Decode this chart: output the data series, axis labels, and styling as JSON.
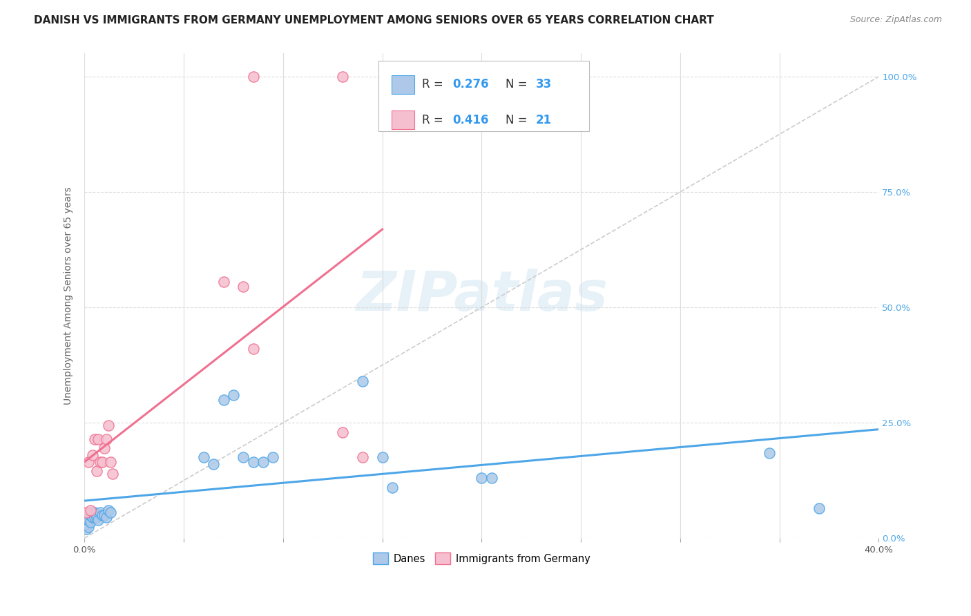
{
  "title": "DANISH VS IMMIGRANTS FROM GERMANY UNEMPLOYMENT AMONG SENIORS OVER 65 YEARS CORRELATION CHART",
  "source": "Source: ZipAtlas.com",
  "ylabel": "Unemployment Among Seniors over 65 years",
  "xlim": [
    0.0,
    0.4
  ],
  "ylim": [
    0.0,
    1.05
  ],
  "xticks": [
    0.0,
    0.05,
    0.1,
    0.15,
    0.2,
    0.25,
    0.3,
    0.35,
    0.4
  ],
  "yticks_right": [
    0.0,
    0.25,
    0.5,
    0.75,
    1.0
  ],
  "yticklabels_right": [
    "0.0%",
    "25.0%",
    "50.0%",
    "75.0%",
    "100.0%"
  ],
  "danes_color": "#adc8e8",
  "immigrants_color": "#f5bfcf",
  "danes_line_color": "#4da6e8",
  "immigrants_line_color": "#f07090",
  "ref_line_color": "#cccccc",
  "legend_text_color": "#3399ee",
  "danes_R": "0.276",
  "danes_N": "33",
  "immigrants_R": "0.416",
  "immigrants_N": "21",
  "watermark": "ZIPatlas",
  "danes_x": [
    0.001,
    0.001,
    0.002,
    0.002,
    0.003,
    0.003,
    0.004,
    0.004,
    0.005,
    0.005,
    0.006,
    0.007,
    0.008,
    0.009,
    0.01,
    0.011,
    0.012,
    0.013,
    0.06,
    0.065,
    0.07,
    0.075,
    0.08,
    0.085,
    0.09,
    0.095,
    0.14,
    0.15,
    0.155,
    0.2,
    0.205,
    0.345,
    0.37
  ],
  "danes_y": [
    0.02,
    0.03,
    0.025,
    0.04,
    0.035,
    0.05,
    0.045,
    0.055,
    0.045,
    0.055,
    0.045,
    0.04,
    0.055,
    0.05,
    0.05,
    0.045,
    0.06,
    0.055,
    0.175,
    0.16,
    0.3,
    0.31,
    0.175,
    0.165,
    0.165,
    0.175,
    0.34,
    0.175,
    0.11,
    0.13,
    0.13,
    0.185,
    0.065
  ],
  "immigrants_x": [
    0.001,
    0.002,
    0.003,
    0.004,
    0.005,
    0.006,
    0.007,
    0.008,
    0.009,
    0.01,
    0.011,
    0.012,
    0.013,
    0.014,
    0.07,
    0.08,
    0.085,
    0.13,
    0.14,
    0.085,
    0.13
  ],
  "immigrants_y": [
    0.055,
    0.165,
    0.06,
    0.18,
    0.215,
    0.145,
    0.215,
    0.165,
    0.165,
    0.195,
    0.215,
    0.245,
    0.165,
    0.14,
    0.555,
    0.545,
    0.41,
    0.23,
    0.175,
    1.0,
    1.0
  ],
  "title_fontsize": 11,
  "axis_label_fontsize": 10,
  "tick_fontsize": 9.5
}
